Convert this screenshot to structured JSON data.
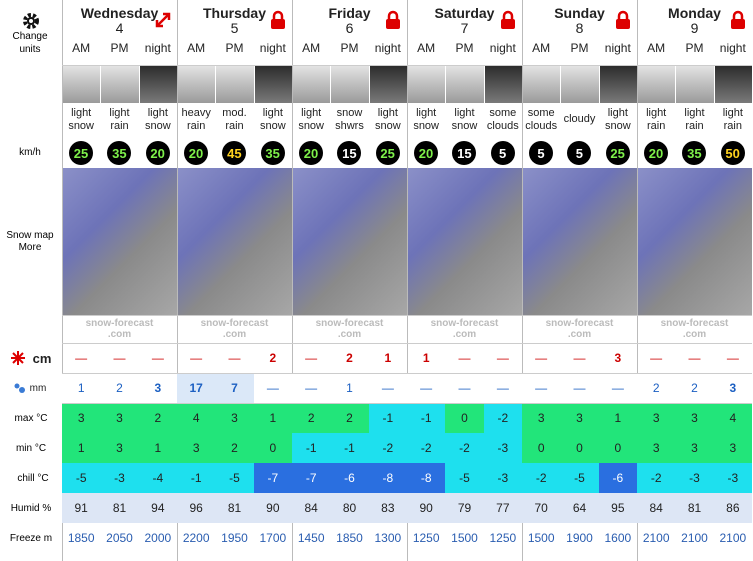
{
  "sidebar": {
    "change_units": "Change units",
    "wind_unit": "km/h",
    "snow_map": "Snow map",
    "more": "More",
    "snow_unit": "cm",
    "rain_unit": "mm",
    "max": "max °C",
    "min": "min °C",
    "chill": "chill °C",
    "humidity": "Humid %",
    "freeze": "Freeze m"
  },
  "periods": [
    "AM",
    "PM",
    "night"
  ],
  "watermark": [
    "snow-forecast",
    ".com"
  ],
  "days": [
    {
      "name": "Wednesday",
      "date": 4,
      "weather": [
        "light snow",
        "light rain",
        "light snow"
      ],
      "wind": [
        25,
        35,
        20
      ],
      "snow_cm": [
        "—",
        "—",
        "—"
      ],
      "rain_mm": [
        1,
        2,
        3
      ],
      "max": [
        3,
        3,
        2
      ],
      "min": [
        1,
        3,
        1
      ],
      "chill": [
        -5,
        -3,
        -4
      ],
      "humidity": [
        91,
        81,
        94
      ],
      "freeze": [
        1850,
        2050,
        2000
      ]
    },
    {
      "name": "Thursday",
      "date": 5,
      "weather": [
        "heavy rain",
        "mod. rain",
        "light snow"
      ],
      "wind": [
        20,
        45,
        35
      ],
      "snow_cm": [
        "—",
        "—",
        2
      ],
      "rain_mm": [
        17,
        7,
        "—"
      ],
      "max": [
        4,
        3,
        1
      ],
      "min": [
        3,
        2,
        0
      ],
      "chill": [
        -1,
        -5,
        -7
      ],
      "humidity": [
        96,
        81,
        90
      ],
      "freeze": [
        2200,
        1950,
        1700
      ]
    },
    {
      "name": "Friday",
      "date": 6,
      "weather": [
        "light snow",
        "snow shwrs",
        "light snow"
      ],
      "wind": [
        20,
        15,
        25
      ],
      "snow_cm": [
        "—",
        2,
        1
      ],
      "rain_mm": [
        "—",
        1,
        "—"
      ],
      "max": [
        2,
        2,
        -1
      ],
      "min": [
        -1,
        -1,
        -2
      ],
      "chill": [
        -7,
        -6,
        -8
      ],
      "humidity": [
        84,
        80,
        83
      ],
      "freeze": [
        1450,
        1850,
        1300
      ]
    },
    {
      "name": "Saturday",
      "date": 7,
      "weather": [
        "light snow",
        "light snow",
        "some clouds"
      ],
      "wind": [
        20,
        15,
        5
      ],
      "snow_cm": [
        1,
        "—",
        "—"
      ],
      "rain_mm": [
        "—",
        "—",
        "—"
      ],
      "max": [
        -1,
        0,
        -2
      ],
      "min": [
        -2,
        -2,
        -3
      ],
      "chill": [
        -8,
        -5,
        -3
      ],
      "humidity": [
        90,
        79,
        77
      ],
      "freeze": [
        1250,
        1500,
        1250
      ]
    },
    {
      "name": "Sunday",
      "date": 8,
      "weather": [
        "some clouds",
        "cloudy",
        "light snow"
      ],
      "wind": [
        5,
        5,
        25
      ],
      "snow_cm": [
        "—",
        "—",
        3
      ],
      "rain_mm": [
        "—",
        "—",
        "—"
      ],
      "max": [
        3,
        3,
        1
      ],
      "min": [
        0,
        0,
        0
      ],
      "chill": [
        -2,
        -5,
        -6
      ],
      "humidity": [
        70,
        64,
        95
      ],
      "freeze": [
        1500,
        1900,
        1600
      ]
    },
    {
      "name": "Monday",
      "date": 9,
      "weather": [
        "light rain",
        "light rain",
        "light rain"
      ],
      "wind": [
        20,
        35,
        50
      ],
      "snow_cm": [
        "—",
        "—",
        "—"
      ],
      "rain_mm": [
        2,
        2,
        3
      ],
      "max": [
        3,
        3,
        4
      ],
      "min": [
        3,
        3,
        3
      ],
      "chill": [
        -2,
        -3,
        -3
      ],
      "humidity": [
        84,
        81,
        86
      ],
      "freeze": [
        2100,
        2100,
        2100
      ]
    }
  ]
}
